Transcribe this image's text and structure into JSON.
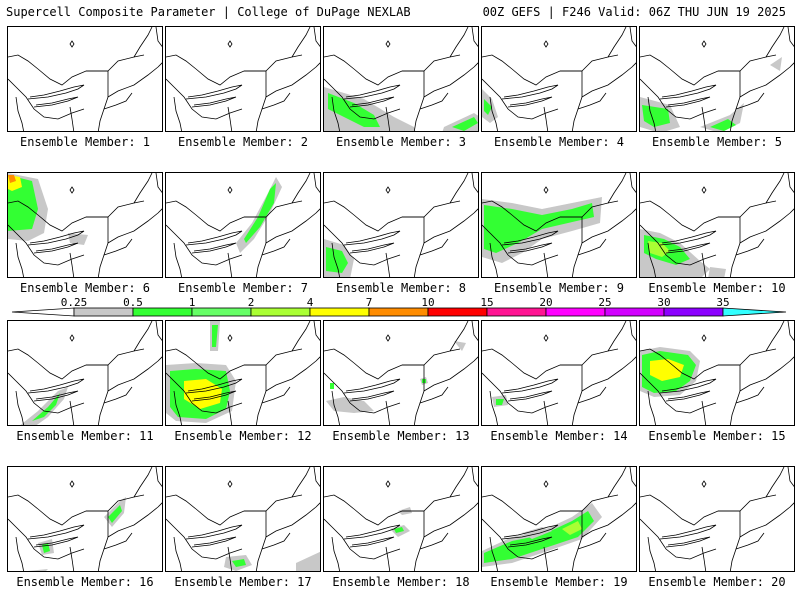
{
  "header": {
    "left_title": "Supercell Composite Parameter | College of DuPage NEXLAB",
    "right_title": "00Z GEFS | F246 Valid: 06Z THU JUN 19 2025"
  },
  "legend": {
    "levels": [
      "0.25",
      "0.5",
      "1",
      "2",
      "4",
      "7",
      "10",
      "15",
      "20",
      "25",
      "30",
      "35"
    ],
    "colors": [
      "#c8c8c8",
      "#33ff33",
      "#66ff66",
      "#aaff33",
      "#ffff00",
      "#ff8c00",
      "#ff0000",
      "#ff1493",
      "#ff00ff",
      "#d200ff",
      "#8c00ff",
      "#b464ff",
      "#33ffff"
    ]
  },
  "colors": {
    "map_line": "#000000",
    "panel_border": "#000000"
  },
  "members": [
    {
      "label": "Ensemble Member: 1",
      "fill": []
    },
    {
      "label": "Ensemble Member: 2",
      "fill": []
    },
    {
      "label": "Ensemble Member: 3",
      "fill": [
        "gray",
        "green"
      ]
    },
    {
      "label": "Ensemble Member: 4",
      "fill": [
        "gray",
        "green"
      ]
    },
    {
      "label": "Ensemble Member: 5",
      "fill": [
        "gray",
        "green"
      ]
    },
    {
      "label": "Ensemble Member: 6",
      "fill": [
        "gray",
        "green",
        "yellow",
        "orange"
      ]
    },
    {
      "label": "Ensemble Member: 7",
      "fill": [
        "gray",
        "green"
      ]
    },
    {
      "label": "Ensemble Member: 8",
      "fill": [
        "gray",
        "green"
      ]
    },
    {
      "label": "Ensemble Member: 9",
      "fill": [
        "gray",
        "green"
      ]
    },
    {
      "label": "Ensemble Member: 10",
      "fill": [
        "gray",
        "green",
        "lime"
      ]
    },
    {
      "label": "Ensemble Member: 11",
      "fill": [
        "gray",
        "green"
      ]
    },
    {
      "label": "Ensemble Member: 12",
      "fill": [
        "gray",
        "green",
        "yellow"
      ]
    },
    {
      "label": "Ensemble Member: 13",
      "fill": [
        "gray",
        "green"
      ]
    },
    {
      "label": "Ensemble Member: 14",
      "fill": [
        "gray",
        "green"
      ]
    },
    {
      "label": "Ensemble Member: 15",
      "fill": [
        "gray",
        "green",
        "yellow"
      ]
    },
    {
      "label": "Ensemble Member: 16",
      "fill": [
        "gray",
        "green"
      ]
    },
    {
      "label": "Ensemble Member: 17",
      "fill": [
        "gray",
        "green"
      ]
    },
    {
      "label": "Ensemble Member: 18",
      "fill": [
        "gray",
        "green"
      ]
    },
    {
      "label": "Ensemble Member: 19",
      "fill": [
        "gray",
        "green",
        "lime"
      ]
    },
    {
      "label": "Ensemble Member: 20",
      "fill": []
    }
  ]
}
